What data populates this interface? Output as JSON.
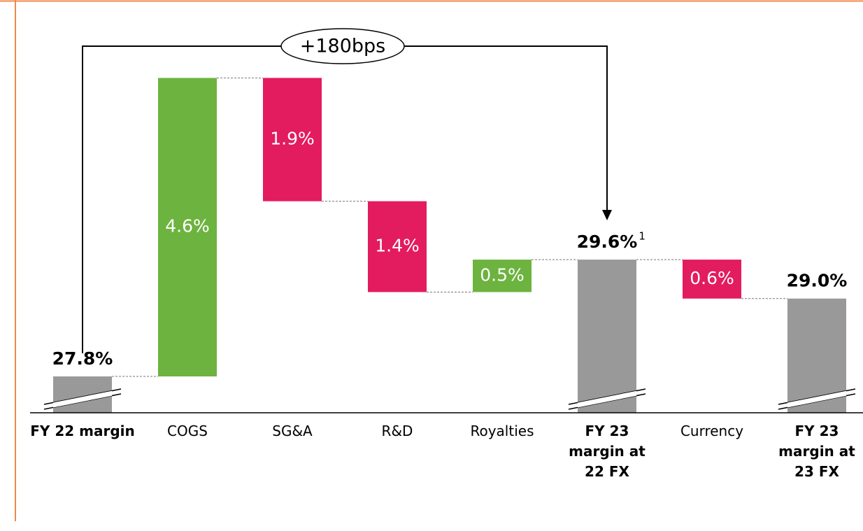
{
  "chart_data": {
    "type": "waterfall",
    "annotation": "+180bps",
    "categories": [
      "FY 22 margin",
      "COGS",
      "SG&A",
      "R&D",
      "Royalties",
      "FY 23\nmargin at\n22 FX",
      "Currency",
      "FY 23\nmargin at\n23 FX"
    ],
    "measures": [
      "total",
      "relative",
      "relative",
      "relative",
      "relative",
      "total",
      "relative",
      "total"
    ],
    "values": [
      27.8,
      4.6,
      -1.9,
      -1.4,
      0.5,
      29.6,
      -0.6,
      29.0
    ],
    "value_labels": [
      "27.8%",
      "4.6%",
      "1.9%",
      "1.4%",
      "0.5%",
      "29.6%",
      "0.6%",
      "29.0%"
    ],
    "footnote_markers": [
      null,
      null,
      null,
      null,
      null,
      "1",
      null,
      null
    ],
    "colors": {
      "total": "#999999",
      "increase": "#6db33f",
      "decrease": "#e31b5f"
    },
    "ylim": [
      27.24,
      32.9
    ]
  }
}
